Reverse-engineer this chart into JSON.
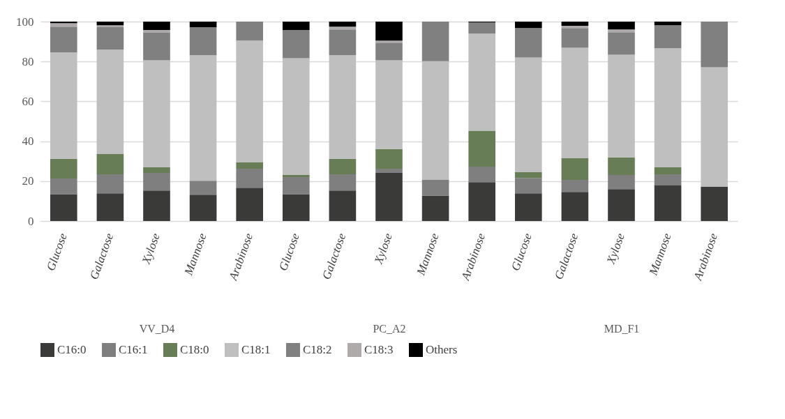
{
  "chart_data": [
    {
      "type": "bar",
      "stacked": true,
      "xlabel": "VV_D4",
      "categories": [
        "Glucose",
        "Galactose",
        "Xylose",
        "Mannose",
        "Arabinose"
      ],
      "ylim": [
        0,
        100
      ],
      "yticks": [
        0,
        20,
        40,
        60,
        80,
        100
      ],
      "grid": "y",
      "legend": "bottom",
      "series": [
        {
          "name": "C16:0",
          "color": "#3a3a38",
          "values": [
            13.5,
            13.9,
            15.3,
            13.2,
            16.7
          ]
        },
        {
          "name": "C16:1",
          "color": "#7f7f7f",
          "values": [
            7.8,
            9.5,
            8.8,
            7.0,
            9.5
          ]
        },
        {
          "name": "C18:0",
          "color": "#667d55",
          "values": [
            9.9,
            10.2,
            2.8,
            null,
            3.2
          ]
        },
        {
          "name": "C18:1",
          "color": "#bfbfbf",
          "values": [
            53.3,
            52.3,
            53.7,
            62.9,
            61.1
          ]
        },
        {
          "name": "C18:2",
          "color": "#808080",
          "values": [
            13.0,
            11.3,
            13.8,
            14.1,
            9.5
          ]
        },
        {
          "name": "C18:3",
          "color": "#aeaaaa",
          "values": [
            1.7,
            1.0,
            1.4,
            null,
            null
          ]
        },
        {
          "name": "Others",
          "color": "#000000",
          "values": [
            0.8,
            1.8,
            4.2,
            2.8,
            null
          ]
        }
      ]
    },
    {
      "type": "bar",
      "stacked": true,
      "xlabel": "PC_A2",
      "categories": [
        "Glucose",
        "Galactose",
        "Xylose",
        "Mannose",
        "Arabinose"
      ],
      "ylim": [
        0,
        100
      ],
      "yticks": [
        0,
        20,
        40,
        60,
        80,
        100
      ],
      "grid": "y",
      "tick_labels": "x",
      "series": [
        {
          "name": "C16:0",
          "color": "#3a3a38",
          "values": [
            13.5,
            15.3,
            24.1,
            12.8,
            19.5
          ]
        },
        {
          "name": "C16:1",
          "color": "#7f7f7f",
          "values": [
            8.5,
            8.1,
            2.1,
            7.8,
            7.8
          ]
        },
        {
          "name": "C18:0",
          "color": "#667d55",
          "values": [
            1.1,
            7.8,
            9.9,
            null,
            18.0
          ]
        },
        {
          "name": "C18:1",
          "color": "#bfbfbf",
          "values": [
            58.5,
            51.9,
            44.5,
            59.6,
            48.7
          ]
        },
        {
          "name": "C18:2",
          "color": "#808080",
          "values": [
            14.2,
            13.0,
            8.8,
            19.8,
            5.6
          ]
        },
        {
          "name": "C18:3",
          "color": "#aeaaaa",
          "values": [
            null,
            1.4,
            1.1,
            null,
            null
          ]
        },
        {
          "name": "Others",
          "color": "#000000",
          "values": [
            4.2,
            2.5,
            9.5,
            null,
            0.4
          ]
        }
      ]
    },
    {
      "type": "bar",
      "stacked": true,
      "xlabel": "MD_F1",
      "categories": [
        "Glucose",
        "Galactose",
        "Xylose",
        "Mannose",
        "Arabinose"
      ],
      "ylim": [
        0,
        100
      ],
      "yticks": [
        0,
        20,
        40,
        60,
        80,
        100
      ],
      "grid": "y",
      "tick_labels": "x",
      "series": [
        {
          "name": "C16:0",
          "color": "#3a3a38",
          "values": [
            13.9,
            14.6,
            16.0,
            17.8,
            17.1
          ]
        },
        {
          "name": "C16:1",
          "color": "#7f7f7f",
          "values": [
            7.7,
            6.0,
            7.1,
            5.6,
            null
          ]
        },
        {
          "name": "C18:0",
          "color": "#667d55",
          "values": [
            2.9,
            10.9,
            8.8,
            3.5,
            null
          ]
        },
        {
          "name": "C18:1",
          "color": "#bfbfbf",
          "values": [
            57.5,
            55.4,
            51.5,
            59.7,
            60.0
          ]
        },
        {
          "name": "C18:2",
          "color": "#808080",
          "values": [
            14.8,
            9.9,
            11.3,
            11.6,
            22.9
          ]
        },
        {
          "name": "C18:3",
          "color": "#aeaaaa",
          "values": [
            null,
            1.1,
            1.4,
            null,
            null
          ]
        },
        {
          "name": "Others",
          "color": "#000000",
          "values": [
            3.2,
            2.1,
            3.9,
            1.8,
            null
          ]
        }
      ]
    }
  ]
}
